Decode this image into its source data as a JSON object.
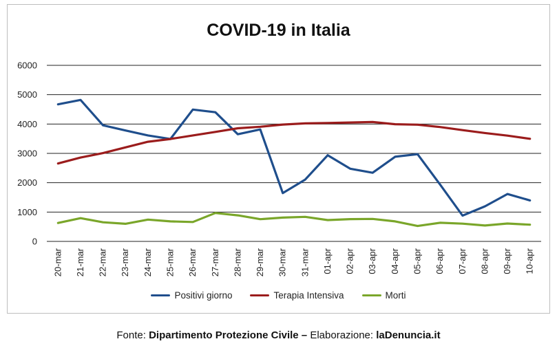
{
  "chart_data": {
    "type": "line",
    "title": "COVID-19 in Italia",
    "xlabel": "",
    "ylabel": "",
    "ylim": [
      0,
      6000
    ],
    "yticks": [
      "0",
      "1000",
      "2000",
      "3000",
      "4000",
      "5000",
      "6000"
    ],
    "grid": true,
    "legend_position": "bottom",
    "categories": [
      "20-mar",
      "21-mar",
      "22-mar",
      "23-mar",
      "24-mar",
      "25-mar",
      "26-mar",
      "27-mar",
      "28-mar",
      "29-mar",
      "30-mar",
      "31-mar",
      "01-apr",
      "02-apr",
      "03-apr",
      "04-apr",
      "05-apr",
      "06-apr",
      "07-apr",
      "08-apr",
      "09-apr",
      "10-apr"
    ],
    "series": [
      {
        "name": "Positivi giorno",
        "color": "#1f4e8c",
        "values": [
          4670,
          4821,
          3957,
          3780,
          3612,
          3491,
          4492,
          4401,
          3651,
          3815,
          1648,
          2107,
          2937,
          2477,
          2339,
          2886,
          2972,
          1941,
          880,
          1195,
          1615,
          1396
        ]
      },
      {
        "name": "Terapia Intensiva",
        "color": "#9b1c1c",
        "values": [
          2655,
          2857,
          3009,
          3204,
          3396,
          3489,
          3612,
          3732,
          3856,
          3906,
          3981,
          4023,
          4035,
          4053,
          4068,
          3994,
          3977,
          3898,
          3792,
          3693,
          3605,
          3497
        ]
      },
      {
        "name": "Morti",
        "color": "#7aa62a",
        "values": [
          627,
          793,
          651,
          601,
          743,
          683,
          662,
          969,
          889,
          756,
          812,
          837,
          727,
          760,
          766,
          681,
          525,
          636,
          604,
          542,
          610,
          570
        ]
      }
    ]
  },
  "source": {
    "prefix": "Fonte: ",
    "org": "Dipartimento Protezione Civile",
    "dash": " – ",
    "elab_label": "Elaborazione: ",
    "site": "laDenuncia.it"
  }
}
